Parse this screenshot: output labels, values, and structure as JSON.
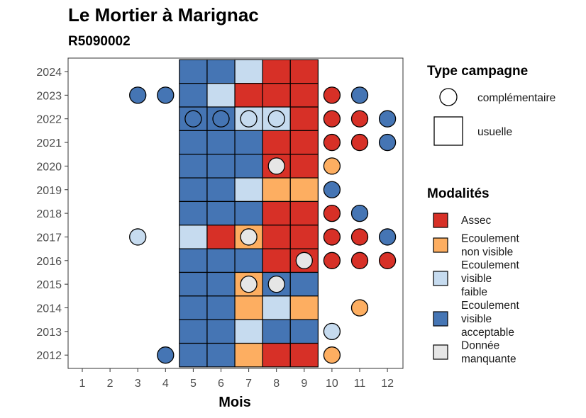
{
  "chart_data": {
    "type": "heatmap",
    "title": "Le Mortier à Marignac",
    "subtitle": "R5090002",
    "xlabel": "Mois",
    "ylabel": "",
    "x": [
      1,
      2,
      3,
      4,
      5,
      6,
      7,
      8,
      9,
      10,
      11,
      12
    ],
    "y": [
      2012,
      2013,
      2014,
      2015,
      2016,
      2017,
      2018,
      2019,
      2020,
      2021,
      2022,
      2023,
      2024
    ],
    "colors": {
      "Assec": "#d73027",
      "Ecoulement non visible": "#fdae61",
      "Ecoulement visible faible": "#c6dbef",
      "Ecoulement visible acceptable": "#4575b4",
      "Donnée manquante": "#e6e6e6"
    },
    "usuelle": [
      {
        "year": 2024,
        "months": [
          "Ecoulement visible acceptable",
          "Ecoulement visible acceptable",
          "Ecoulement visible faible",
          "Assec",
          "Assec"
        ]
      },
      {
        "year": 2023,
        "months": [
          "Ecoulement visible acceptable",
          "Ecoulement visible faible",
          "Assec",
          "Assec",
          "Assec"
        ]
      },
      {
        "year": 2022,
        "months": [
          "Ecoulement visible acceptable",
          "Ecoulement visible acceptable",
          "Ecoulement visible faible",
          "Ecoulement visible faible",
          "Assec"
        ]
      },
      {
        "year": 2021,
        "months": [
          "Ecoulement visible acceptable",
          "Ecoulement visible acceptable",
          "Ecoulement visible acceptable",
          "Assec",
          "Assec"
        ]
      },
      {
        "year": 2020,
        "months": [
          "Ecoulement visible acceptable",
          "Ecoulement visible acceptable",
          "Ecoulement visible acceptable",
          "Assec",
          "Assec"
        ]
      },
      {
        "year": 2019,
        "months": [
          "Ecoulement visible acceptable",
          "Ecoulement visible acceptable",
          "Ecoulement visible faible",
          "Ecoulement non visible",
          "Ecoulement non visible"
        ]
      },
      {
        "year": 2018,
        "months": [
          "Ecoulement visible acceptable",
          "Ecoulement visible acceptable",
          "Ecoulement visible acceptable",
          "Assec",
          "Assec"
        ]
      },
      {
        "year": 2017,
        "months": [
          "Ecoulement visible faible",
          "Assec",
          "Ecoulement non visible",
          "Assec",
          "Assec"
        ]
      },
      {
        "year": 2016,
        "months": [
          "Ecoulement visible acceptable",
          "Ecoulement visible acceptable",
          "Ecoulement visible acceptable",
          "Assec",
          "Assec"
        ]
      },
      {
        "year": 2015,
        "months": [
          "Ecoulement visible acceptable",
          "Ecoulement visible acceptable",
          "Ecoulement non visible",
          "Ecoulement visible acceptable",
          "Ecoulement visible acceptable"
        ]
      },
      {
        "year": 2014,
        "months": [
          "Ecoulement visible acceptable",
          "Ecoulement visible acceptable",
          "Ecoulement non visible",
          "Ecoulement visible faible",
          "Ecoulement non visible"
        ]
      },
      {
        "year": 2013,
        "months": [
          "Ecoulement visible acceptable",
          "Ecoulement visible acceptable",
          "Ecoulement visible faible",
          "Ecoulement visible acceptable",
          "Ecoulement visible acceptable"
        ]
      },
      {
        "year": 2012,
        "months": [
          "Ecoulement visible acceptable",
          "Ecoulement visible acceptable",
          "Ecoulement non visible",
          "Assec",
          "Assec"
        ]
      }
    ],
    "usuelle_first_month": 5,
    "complementaire": [
      {
        "year": 2023,
        "month": 3,
        "value": "Ecoulement visible acceptable"
      },
      {
        "year": 2023,
        "month": 4,
        "value": "Ecoulement visible acceptable"
      },
      {
        "year": 2023,
        "month": 10,
        "value": "Assec"
      },
      {
        "year": 2023,
        "month": 11,
        "value": "Ecoulement visible acceptable"
      },
      {
        "year": 2022,
        "month": 5,
        "value": "Ecoulement visible acceptable"
      },
      {
        "year": 2022,
        "month": 6,
        "value": "Ecoulement visible acceptable"
      },
      {
        "year": 2022,
        "month": 7,
        "value": "Ecoulement visible faible"
      },
      {
        "year": 2022,
        "month": 8,
        "value": "Ecoulement visible faible"
      },
      {
        "year": 2022,
        "month": 10,
        "value": "Assec"
      },
      {
        "year": 2022,
        "month": 11,
        "value": "Assec"
      },
      {
        "year": 2022,
        "month": 12,
        "value": "Ecoulement visible acceptable"
      },
      {
        "year": 2021,
        "month": 10,
        "value": "Assec"
      },
      {
        "year": 2021,
        "month": 11,
        "value": "Assec"
      },
      {
        "year": 2021,
        "month": 12,
        "value": "Ecoulement visible acceptable"
      },
      {
        "year": 2020,
        "month": 8,
        "value": "Donnée manquante"
      },
      {
        "year": 2020,
        "month": 10,
        "value": "Ecoulement non visible"
      },
      {
        "year": 2019,
        "month": 10,
        "value": "Ecoulement visible acceptable"
      },
      {
        "year": 2018,
        "month": 10,
        "value": "Assec"
      },
      {
        "year": 2018,
        "month": 11,
        "value": "Ecoulement visible acceptable"
      },
      {
        "year": 2017,
        "month": 3,
        "value": "Ecoulement visible faible"
      },
      {
        "year": 2017,
        "month": 7,
        "value": "Donnée manquante"
      },
      {
        "year": 2017,
        "month": 10,
        "value": "Assec"
      },
      {
        "year": 2017,
        "month": 11,
        "value": "Assec"
      },
      {
        "year": 2017,
        "month": 12,
        "value": "Ecoulement visible acceptable"
      },
      {
        "year": 2016,
        "month": 9,
        "value": "Donnée manquante"
      },
      {
        "year": 2016,
        "month": 10,
        "value": "Assec"
      },
      {
        "year": 2016,
        "month": 11,
        "value": "Assec"
      },
      {
        "year": 2016,
        "month": 12,
        "value": "Assec"
      },
      {
        "year": 2015,
        "month": 7,
        "value": "Donnée manquante"
      },
      {
        "year": 2015,
        "month": 8,
        "value": "Donnée manquante"
      },
      {
        "year": 2014,
        "month": 11,
        "value": "Ecoulement non visible"
      },
      {
        "year": 2013,
        "month": 10,
        "value": "Ecoulement visible faible"
      },
      {
        "year": 2012,
        "month": 4,
        "value": "Ecoulement visible acceptable"
      },
      {
        "year": 2012,
        "month": 10,
        "value": "Ecoulement non visible"
      }
    ],
    "legend": {
      "type_title": "Type campagne",
      "type_items": [
        "complémentaire",
        "usuelle"
      ],
      "mod_title": "Modalités",
      "mod_items": [
        {
          "key": "Assec",
          "lines": [
            "Assec"
          ]
        },
        {
          "key": "Ecoulement non visible",
          "lines": [
            "Ecoulement",
            "non visible"
          ]
        },
        {
          "key": "Ecoulement visible faible",
          "lines": [
            "Ecoulement",
            "visible",
            "faible"
          ]
        },
        {
          "key": "Ecoulement visible acceptable",
          "lines": [
            "Ecoulement",
            "visible",
            "acceptable"
          ]
        },
        {
          "key": "Donnée manquante",
          "lines": [
            "Donnée",
            "manquante"
          ]
        }
      ]
    },
    "legend_position": "right",
    "grid": false
  }
}
